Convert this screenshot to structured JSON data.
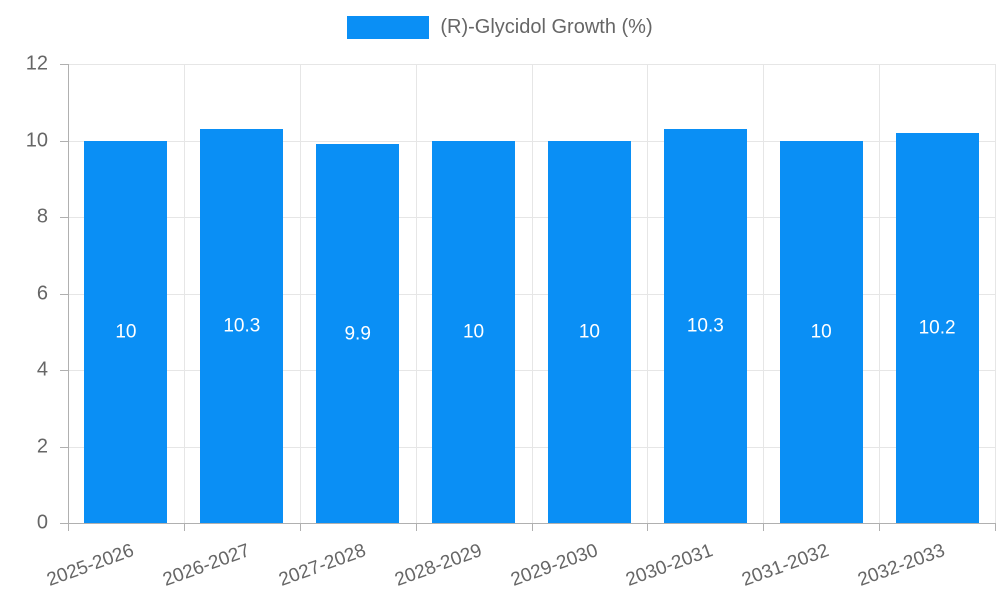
{
  "chart_data": {
    "type": "bar",
    "title": "",
    "legend_label": "(R)-Glycidol Growth (%)",
    "legend_position": "top",
    "categories": [
      "2025-2026",
      "2026-2027",
      "2027-2028",
      "2028-2029",
      "2029-2030",
      "2030-2031",
      "2031-2032",
      "2032-2033"
    ],
    "values": [
      10,
      10.3,
      9.9,
      10,
      10,
      10.3,
      10,
      10.2
    ],
    "value_labels": [
      "10",
      "10.3",
      "9.9",
      "10",
      "10",
      "10.3",
      "10",
      "10.2"
    ],
    "xlabel": "",
    "ylabel": "",
    "ylim": [
      0,
      12
    ],
    "yticks": [
      0,
      2,
      4,
      6,
      8,
      10,
      12
    ],
    "ytick_labels": [
      "0",
      "2",
      "4",
      "6",
      "8",
      "10",
      "12"
    ],
    "grid": true,
    "x_label_rotation_deg": -20,
    "colors": {
      "bar": "#0a8ff5",
      "grid": "#e6e6e6",
      "axis": "#b0b0b0",
      "tick_text": "#666666",
      "bar_label_text": "#ffffff",
      "background": "#ffffff"
    }
  }
}
